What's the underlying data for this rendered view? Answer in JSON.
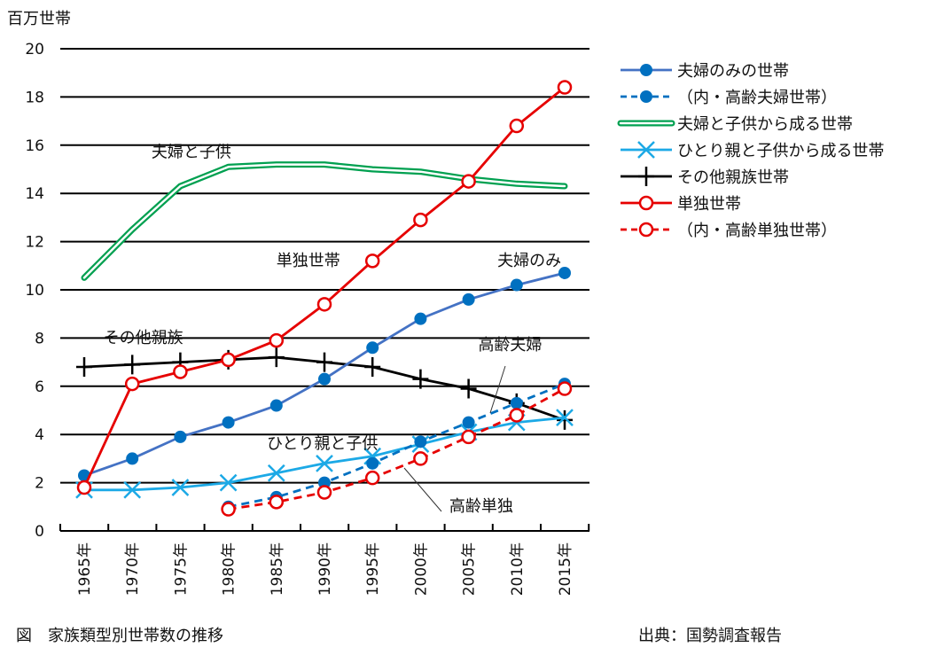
{
  "chart_data": {
    "type": "line",
    "title": "",
    "ylabel": "百万世帯",
    "xlabel": "",
    "ylim": [
      0,
      20
    ],
    "yticks": [
      0,
      2,
      4,
      6,
      8,
      10,
      12,
      14,
      16,
      18,
      20
    ],
    "grid": true,
    "legend_position": "right",
    "categories": [
      "1965年",
      "1970年",
      "1975年",
      "1980年",
      "1985年",
      "1990年",
      "1995年",
      "2000年",
      "2005年",
      "2010年",
      "2015年"
    ],
    "series": [
      {
        "name": "夫婦のみの世帯",
        "color": "#4472c4",
        "marker": "filled-circle",
        "marker_color": "#0070c0",
        "dash": false,
        "values": [
          2.3,
          3.0,
          3.9,
          4.5,
          5.2,
          6.3,
          7.6,
          8.8,
          9.6,
          10.2,
          10.7
        ]
      },
      {
        "name": "（内・高齢夫婦世帯）",
        "color": "#0070c0",
        "marker": "filled-circle",
        "marker_color": "#0070c0",
        "dash": true,
        "values": [
          null,
          null,
          null,
          1.0,
          1.4,
          2.0,
          2.8,
          3.7,
          4.5,
          5.3,
          6.1
        ]
      },
      {
        "name": "夫婦と子供から成る世帯",
        "color": "#00a050",
        "marker": "double-line",
        "dash": false,
        "values": [
          10.5,
          12.5,
          14.3,
          15.1,
          15.2,
          15.2,
          15.0,
          14.9,
          14.6,
          14.4,
          14.3
        ]
      },
      {
        "name": "ひとり親と子供から成る世帯",
        "color": "#1ca9e6",
        "marker": "x",
        "dash": false,
        "values": [
          1.7,
          1.7,
          1.8,
          2.0,
          2.4,
          2.8,
          3.1,
          3.6,
          4.1,
          4.5,
          4.7
        ]
      },
      {
        "name": "その他親族世帯",
        "color": "#000000",
        "marker": "plus",
        "dash": false,
        "values": [
          6.8,
          6.9,
          7.0,
          7.1,
          7.2,
          7.0,
          6.8,
          6.3,
          5.9,
          5.3,
          4.6
        ]
      },
      {
        "name": "単独世帯",
        "color": "#e60000",
        "marker": "open-circle",
        "dash": false,
        "values": [
          1.8,
          6.1,
          6.6,
          7.1,
          7.9,
          9.4,
          11.2,
          12.9,
          14.5,
          16.8,
          18.4
        ]
      },
      {
        "name": "（内・高齢単独世帯）",
        "color": "#e60000",
        "marker": "open-circle",
        "dash": true,
        "values": [
          null,
          null,
          null,
          0.9,
          1.2,
          1.6,
          2.2,
          3.0,
          3.9,
          4.8,
          5.9
        ]
      }
    ],
    "annotations": [
      {
        "text": "夫婦と子供",
        "x": "1972年",
        "y": 15.5
      },
      {
        "text": "単独世帯",
        "x": "1985年",
        "y": 11.0
      },
      {
        "text": "夫婦のみ",
        "x": "2008年",
        "y": 11.0
      },
      {
        "text": "その他親族",
        "x": "1967年",
        "y": 7.8
      },
      {
        "text": "高齢夫婦",
        "x": "2006年",
        "y": 7.5
      },
      {
        "text": "ひとり親と子供",
        "x": "1984年",
        "y": 3.4
      },
      {
        "text": "高齢単独",
        "x": "2003年",
        "y": 0.8
      }
    ]
  },
  "figure": {
    "caption": "図　家族類型別世帯数の推移",
    "source": "出典：国勢調査報告"
  }
}
